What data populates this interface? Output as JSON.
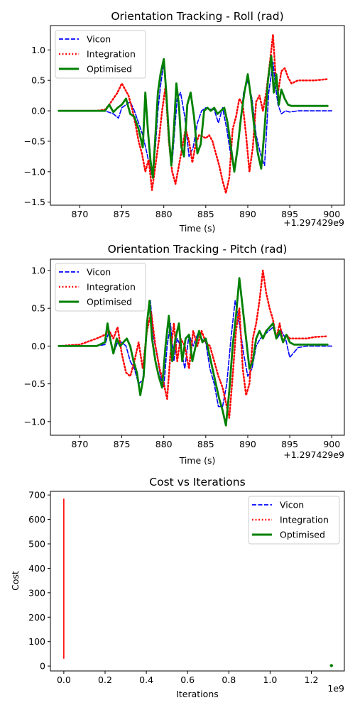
{
  "colors": {
    "vicon": "#0000ff",
    "integration": "#ff0000",
    "optimised": "#008000",
    "cost_line": "#ff0000"
  },
  "chart_data": [
    {
      "type": "line",
      "title": "Orientation Tracking - Roll (rad)",
      "xlabel": "Time (s)",
      "ylabel": "",
      "offset_label": "+1.297429e9",
      "xlim": [
        866.5,
        901.5
      ],
      "ylim": [
        -1.55,
        1.4
      ],
      "xticks": [
        870,
        875,
        880,
        885,
        890,
        895,
        900
      ],
      "xtick_labels": [
        "870",
        "875",
        "880",
        "885",
        "890",
        "895",
        "900"
      ],
      "yticks": [
        -1.5,
        -1.0,
        -0.5,
        0.0,
        0.5,
        1.0
      ],
      "ytick_labels": [
        "−1.5",
        "−1.0",
        "−0.5",
        "0.0",
        "0.5",
        "1.0"
      ],
      "legend_position": "top-left",
      "series": [
        {
          "name": "Vicon",
          "style": "dashed",
          "x": [
            867.5,
            870,
            872,
            873,
            874,
            874.6,
            875,
            875.5,
            876,
            876.5,
            877,
            877.5,
            878,
            878.3,
            878.6,
            879,
            879.3,
            879.6,
            880,
            880.3,
            880.6,
            881,
            881.3,
            881.6,
            882,
            882.5,
            883,
            883.5,
            884,
            884.5,
            885,
            885.5,
            886,
            886.5,
            887,
            887.5,
            888,
            888.5,
            889,
            889.5,
            890,
            890.5,
            891,
            891.5,
            892,
            892.5,
            893,
            893.3,
            893.6,
            894,
            894.5,
            895,
            896,
            897,
            898,
            900
          ],
          "y": [
            0,
            0,
            0,
            0,
            -0.05,
            -0.12,
            0.05,
            0.1,
            0.15,
            0,
            -0.2,
            -0.4,
            -0.7,
            -0.9,
            -1.05,
            -0.6,
            0,
            0.4,
            0.8,
            0.3,
            -0.5,
            -0.85,
            -0.3,
            0.2,
            0.3,
            -0.1,
            -0.75,
            -0.6,
            -0.2,
            0,
            0.05,
            0.03,
            0.02,
            -0.2,
            0.05,
            -0.3,
            -0.75,
            -0.95,
            -0.4,
            0.3,
            0.5,
            0.2,
            -0.4,
            -0.7,
            -0.9,
            0.3,
            0.8,
            0.4,
            0.1,
            -0.05,
            0,
            -0.02,
            0,
            0,
            0,
            0
          ]
        },
        {
          "name": "Integration",
          "style": "dotted",
          "x": [
            867.5,
            870,
            872,
            873,
            873.5,
            874,
            874.5,
            875,
            875.4,
            875.8,
            876.2,
            876.6,
            877,
            877.4,
            877.8,
            878.2,
            878.6,
            879,
            879.4,
            879.8,
            880.2,
            880.6,
            881,
            881.4,
            881.8,
            882.2,
            882.6,
            883,
            883.4,
            883.8,
            884.2,
            884.6,
            885,
            885.4,
            885.8,
            886.2,
            886.6,
            887,
            887.4,
            887.8,
            888.2,
            888.6,
            889,
            889.4,
            889.8,
            890.2,
            890.6,
            891,
            891.4,
            891.8,
            892.2,
            892.6,
            893,
            893.3,
            893.6,
            894,
            894.4,
            894.8,
            895.2,
            896,
            897,
            898,
            899.5
          ],
          "y": [
            0,
            0,
            0,
            0.02,
            0.1,
            0.2,
            0.3,
            0.45,
            0.35,
            0.25,
            0.05,
            -0.2,
            -0.5,
            -0.7,
            -1.0,
            -0.8,
            -1.3,
            -0.9,
            -0.5,
            0,
            0.4,
            -0.5,
            -1.0,
            -1.2,
            -0.9,
            -0.6,
            -0.3,
            -0.5,
            -0.85,
            -0.55,
            -0.4,
            -0.42,
            -0.45,
            -0.4,
            -0.5,
            -0.7,
            -0.9,
            -1.15,
            -1.35,
            -1.1,
            -0.3,
            -0.1,
            0.2,
            0.1,
            -0.4,
            -1.0,
            -0.6,
            0.15,
            0.25,
            0.0,
            0.3,
            0.75,
            1.25,
            0.6,
            0.3,
            0.65,
            0.7,
            0.55,
            0.45,
            0.5,
            0.5,
            0.5,
            0.52
          ]
        },
        {
          "name": "Optimised",
          "style": "solid",
          "x": [
            867.5,
            870,
            872,
            873,
            873.5,
            874,
            874.5,
            875,
            875.5,
            876,
            876.5,
            877,
            877.5,
            877.8,
            878.1,
            878.4,
            878.7,
            879,
            879.3,
            879.6,
            880,
            880.3,
            880.6,
            880.9,
            881.2,
            881.5,
            881.8,
            882.1,
            882.4,
            882.8,
            883.2,
            883.6,
            884,
            884.4,
            884.8,
            885.2,
            885.6,
            886,
            886.4,
            886.8,
            887.2,
            887.6,
            888,
            888.4,
            888.8,
            889.2,
            889.6,
            890,
            890.4,
            890.8,
            891.2,
            891.6,
            892,
            892.4,
            892.8,
            893.1,
            893.4,
            893.7,
            894,
            894.4,
            894.8,
            895.2,
            896,
            897,
            898,
            899.5
          ],
          "y": [
            0,
            0,
            0,
            0,
            0.1,
            -0.02,
            0.05,
            0.1,
            0.2,
            -0.05,
            -0.1,
            -0.3,
            -0.6,
            0.3,
            -0.3,
            -0.8,
            -1.1,
            -0.4,
            0.3,
            0.6,
            0.85,
            0.3,
            -0.4,
            -0.9,
            -0.3,
            0.45,
            0.1,
            -0.6,
            -0.75,
            0.1,
            0.3,
            -0.1,
            -0.7,
            -0.55,
            0,
            0.05,
            0,
            0.05,
            -0.05,
            0,
            0.05,
            -0.2,
            -0.6,
            -1.0,
            -0.6,
            -0.1,
            0.3,
            0.6,
            0.2,
            -0.3,
            -0.7,
            -0.95,
            -0.3,
            0.5,
            0.9,
            0.3,
            0.6,
            0.1,
            0.35,
            0.2,
            0.1,
            0.08,
            0.08,
            0.08,
            0.08,
            0.08
          ]
        }
      ]
    },
    {
      "type": "line",
      "title": "Orientation Tracking - Pitch (rad)",
      "xlabel": "Time (s)",
      "ylabel": "",
      "offset_label": "+1.297429e9",
      "xlim": [
        866.5,
        901.5
      ],
      "ylim": [
        -1.18,
        1.15
      ],
      "xticks": [
        870,
        875,
        880,
        885,
        890,
        895,
        900
      ],
      "xtick_labels": [
        "870",
        "875",
        "880",
        "885",
        "890",
        "895",
        "900"
      ],
      "yticks": [
        -1.0,
        -0.5,
        0.0,
        0.5,
        1.0
      ],
      "ytick_labels": [
        "−1.0",
        "−0.5",
        "0.0",
        "0.5",
        "1.0"
      ],
      "legend_position": "top-left",
      "series": [
        {
          "name": "Vicon",
          "style": "dashed",
          "x": [
            867.5,
            870,
            872,
            873,
            873.5,
            874,
            874.5,
            875,
            875.5,
            876,
            876.5,
            877,
            877.5,
            878,
            878.4,
            878.8,
            879.2,
            879.6,
            880,
            880.4,
            880.8,
            881.2,
            881.6,
            882,
            882.5,
            883,
            883.5,
            884,
            884.5,
            885,
            885.5,
            886,
            886.5,
            887,
            887.5,
            888,
            888.5,
            889,
            889.5,
            890,
            890.5,
            891,
            891.5,
            892,
            892.5,
            893,
            893.5,
            894,
            894.5,
            895,
            896,
            897,
            898,
            900
          ],
          "y": [
            0,
            0,
            0,
            0.02,
            0.2,
            -0.1,
            0.05,
            0.05,
            0.0,
            -0.2,
            -0.3,
            -0.5,
            -0.45,
            0.3,
            0.6,
            0.1,
            -0.1,
            -0.4,
            -0.55,
            0.0,
            0.3,
            -0.2,
            0.1,
            0.0,
            -0.3,
            0.15,
            0.0,
            0.15,
            0.1,
            0.05,
            -0.3,
            -0.5,
            -0.8,
            -0.8,
            -0.5,
            0.1,
            0.6,
            0.3,
            -0.1,
            -0.4,
            -0.3,
            0.0,
            0.1,
            0.15,
            0.2,
            0.25,
            0.1,
            0.2,
            0.1,
            -0.15,
            -0.02,
            0,
            0,
            0
          ]
        },
        {
          "name": "Integration",
          "style": "dotted",
          "x": [
            867.5,
            870,
            872,
            873,
            873.5,
            874,
            874.5,
            875,
            875.5,
            876,
            876.5,
            877,
            877.5,
            878,
            878.5,
            879,
            879.5,
            880,
            880.4,
            880.8,
            881.2,
            881.6,
            882,
            882.5,
            883,
            883.5,
            884,
            884.5,
            885,
            885.5,
            886,
            886.5,
            887,
            887.4,
            887.8,
            888.2,
            888.6,
            889,
            889.4,
            889.8,
            890.2,
            890.6,
            891,
            891.4,
            891.8,
            892.2,
            892.6,
            893,
            893.4,
            893.8,
            894.2,
            894.6,
            895,
            896,
            897,
            898,
            899.5
          ],
          "y": [
            0,
            0.02,
            0.1,
            0.15,
            0.2,
            0.1,
            0.25,
            -0.1,
            -0.35,
            -0.4,
            -0.2,
            0.05,
            -0.3,
            0.2,
            0.45,
            0.0,
            -0.3,
            -0.5,
            -0.7,
            -0.1,
            0.3,
            -0.2,
            0.1,
            0.0,
            -0.3,
            0.2,
            0.0,
            0.2,
            0.05,
            0.0,
            -0.2,
            -0.4,
            -0.55,
            -0.75,
            -0.95,
            -0.4,
            0.2,
            0.5,
            -0.3,
            -0.65,
            -0.5,
            0.1,
            0.3,
            0.6,
            1.0,
            0.7,
            0.5,
            0.35,
            0.1,
            0.3,
            0.05,
            0.15,
            0.1,
            0.1,
            0.1,
            0.12,
            0.13
          ]
        },
        {
          "name": "Optimised",
          "style": "solid",
          "x": [
            867.5,
            870,
            872,
            873,
            873.3,
            873.6,
            874,
            874.4,
            874.8,
            875.2,
            875.6,
            876,
            876.4,
            876.8,
            877.2,
            877.6,
            878,
            878.3,
            878.6,
            879,
            879.4,
            879.8,
            880.2,
            880.6,
            881,
            881.4,
            881.8,
            882.2,
            882.6,
            883,
            883.4,
            883.8,
            884.2,
            884.6,
            885,
            885.4,
            885.8,
            886.2,
            886.6,
            887,
            887.4,
            887.8,
            888.2,
            888.6,
            889,
            889.4,
            889.8,
            890.2,
            890.6,
            891,
            891.4,
            891.8,
            892.2,
            892.6,
            893,
            893.4,
            893.8,
            894.2,
            894.6,
            895,
            895.5,
            896,
            897,
            898,
            899.5
          ],
          "y": [
            0,
            0,
            0,
            0.05,
            0.3,
            0.1,
            -0.1,
            0.1,
            0.0,
            0.05,
            0.1,
            0.0,
            -0.2,
            -0.35,
            -0.65,
            -0.4,
            0.3,
            0.6,
            0.1,
            -0.2,
            -0.4,
            -0.55,
            0.0,
            0.4,
            -0.2,
            0.1,
            0.3,
            -0.2,
            0.1,
            0.15,
            -0.2,
            0.0,
            0.2,
            0.05,
            0.1,
            -0.1,
            -0.3,
            -0.5,
            -0.7,
            -0.85,
            -1.05,
            -0.6,
            0.0,
            0.4,
            0.9,
            0.5,
            0.1,
            -0.3,
            -0.2,
            0.1,
            0.2,
            0.1,
            0.2,
            0.25,
            0.3,
            0.1,
            0.2,
            0.05,
            0.15,
            0.05,
            0.02,
            0.02,
            0.02,
            0.02,
            0.02
          ]
        }
      ]
    },
    {
      "type": "line",
      "title": "Cost vs Iterations",
      "xlabel": "Iterations",
      "ylabel": "Cost",
      "offset_label": "1e9",
      "xlim": [
        -0.065,
        1.36
      ],
      "ylim": [
        -20,
        715
      ],
      "xticks": [
        0.0,
        0.2,
        0.4,
        0.6,
        0.8,
        1.0,
        1.2
      ],
      "xtick_labels": [
        "0.0",
        "0.2",
        "0.4",
        "0.6",
        "0.8",
        "1.0",
        "1.2"
      ],
      "yticks": [
        0,
        100,
        200,
        300,
        400,
        500,
        600,
        700
      ],
      "ytick_labels": [
        "0",
        "100",
        "200",
        "300",
        "400",
        "500",
        "600",
        "700"
      ],
      "legend_position": "top-right",
      "legend": [
        "Vicon",
        "Integration",
        "Optimised"
      ],
      "cost_line": {
        "x": [
          0,
          0
        ],
        "y": [
          30,
          685
        ]
      },
      "optimised_point": {
        "x": 1.2974,
        "y": 2
      }
    }
  ]
}
